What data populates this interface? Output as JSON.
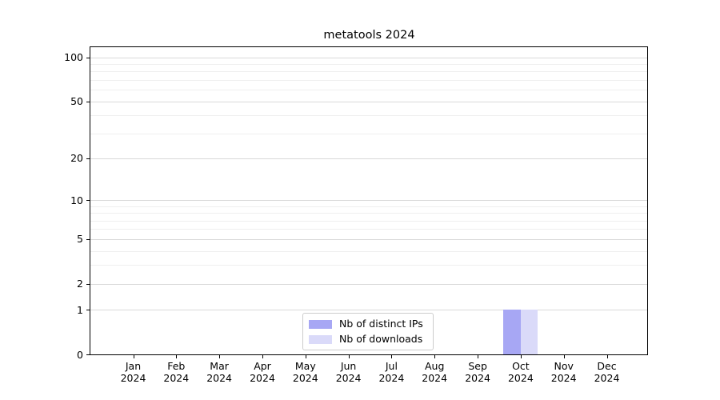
{
  "title": "metatools 2024",
  "chart_data": {
    "type": "bar",
    "title": "metatools 2024",
    "x_tick_months": [
      "Jan",
      "Feb",
      "Mar",
      "Apr",
      "May",
      "Jun",
      "Jul",
      "Aug",
      "Sep",
      "Oct",
      "Nov",
      "Dec"
    ],
    "x_tick_year": "2024",
    "series": [
      {
        "name": "Nb of distinct IPs",
        "color": "#a7a7f4",
        "values": [
          0,
          0,
          0,
          0,
          0,
          0,
          0,
          0,
          0,
          1,
          0,
          0
        ]
      },
      {
        "name": "Nb of downloads",
        "color": "#dadaf9",
        "values": [
          0,
          0,
          0,
          0,
          0,
          0,
          0,
          0,
          0,
          1,
          0,
          0
        ]
      }
    ],
    "y_scale": "log1p",
    "ylim": [
      0,
      117
    ],
    "y_major_ticks": [
      0,
      1,
      2,
      5,
      10,
      20,
      50,
      100
    ],
    "y_minor_ticks": [
      3,
      4,
      6,
      7,
      8,
      9,
      30,
      40,
      60,
      70,
      80,
      90
    ],
    "grid": true,
    "legend_position": "bottom-center"
  }
}
